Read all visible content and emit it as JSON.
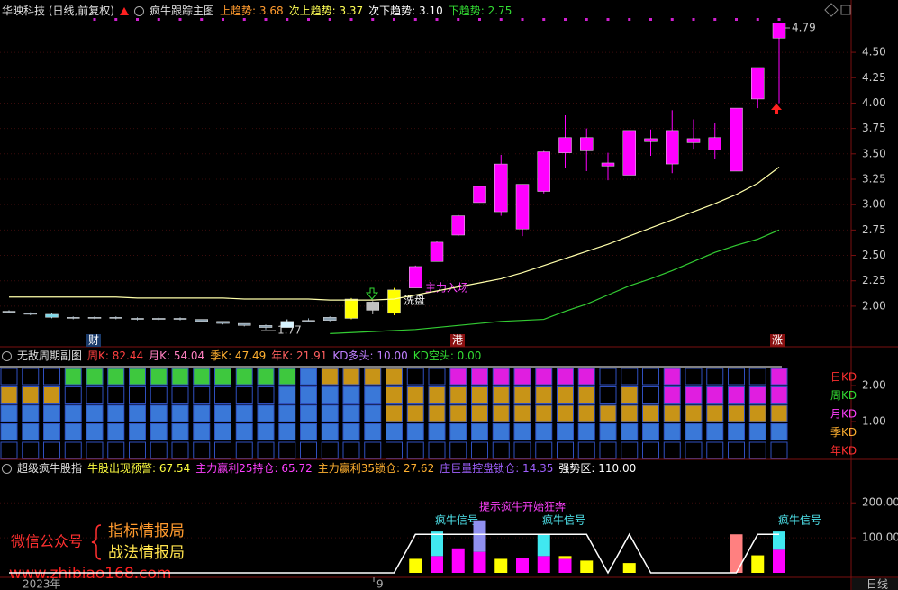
{
  "chart_data": [
    {
      "type": "candlestick",
      "title": "华映科技 (日线,前复权)",
      "subtitle": "疯牛跟踪主图",
      "legend": [
        {
          "text": "上趋势: 3.68",
          "color": "#ff9a2e"
        },
        {
          "text": "次上趋势: 3.37",
          "color": "#ffff55"
        },
        {
          "text": "次下趋势: 3.10",
          "color": "#ffffff"
        },
        {
          "text": "下趋势: 2.75",
          "color": "#33dd33"
        }
      ],
      "open": [
        1.95,
        1.93,
        1.92,
        1.89,
        1.88,
        1.89,
        1.88,
        1.87,
        1.88,
        1.87,
        1.85,
        1.83,
        1.81,
        1.79,
        1.85,
        1.86,
        1.88,
        1.96,
        1.93,
        2.18,
        2.44,
        2.89,
        3.02,
        2.93,
        3.2,
        3.13,
        3.51,
        3.66,
        3.38,
        3.29,
        3.65,
        3.4,
        3.65,
        3.54,
        3.33,
        4.04,
        4.64
      ],
      "high": [
        1.96,
        1.94,
        1.93,
        1.9,
        1.9,
        1.9,
        1.89,
        1.89,
        1.89,
        1.87,
        1.85,
        1.83,
        1.82,
        1.87,
        1.88,
        1.9,
        2.08,
        2.05,
        2.18,
        2.4,
        2.64,
        2.9,
        3.18,
        3.49,
        3.2,
        3.53,
        3.88,
        3.75,
        3.51,
        3.73,
        3.74,
        3.93,
        3.84,
        3.8,
        3.95,
        4.35,
        4.79
      ],
      "low": [
        1.93,
        1.91,
        1.88,
        1.87,
        1.87,
        1.87,
        1.86,
        1.86,
        1.86,
        1.84,
        1.82,
        1.8,
        1.77,
        1.79,
        1.84,
        1.85,
        1.87,
        1.92,
        1.91,
        2.18,
        2.44,
        2.69,
        3.02,
        2.89,
        2.69,
        3.11,
        3.36,
        3.33,
        3.24,
        3.29,
        3.48,
        3.31,
        3.55,
        3.45,
        3.33,
        3.95,
        4.0
      ],
      "close": [
        1.94,
        1.92,
        1.89,
        1.88,
        1.89,
        1.88,
        1.87,
        1.88,
        1.87,
        1.85,
        1.83,
        1.81,
        1.79,
        1.85,
        1.86,
        1.89,
        2.07,
        2.04,
        2.16,
        2.39,
        2.63,
        2.7,
        3.18,
        3.4,
        2.76,
        3.52,
        3.66,
        3.53,
        3.41,
        3.73,
        3.62,
        3.73,
        3.61,
        3.66,
        3.95,
        4.35,
        4.79
      ],
      "colors": [
        "#8aa0b0",
        "#8aa0b0",
        "#7fd8e8",
        "#8aa0b0",
        "#8aa0b0",
        "#8aa0b0",
        "#8aa0b0",
        "#8aa0b0",
        "#8aa0b0",
        "#8aa0b0",
        "#8aa0b0",
        "#8aa0b0",
        "#8aa0b0",
        "#d8f4ff",
        "#8aa0b0",
        "#8aa0b0",
        "#ffff00",
        "#c0c0c0",
        "#ffff00",
        "#ff00ff",
        "#ff00ff",
        "#ff00ff",
        "#ff00ff",
        "#ff00ff",
        "#ff00ff",
        "#ff00ff",
        "#ff00ff",
        "#ff00ff",
        "#ff00ff",
        "#ff00ff",
        "#ff00ff",
        "#ff00ff",
        "#ff00ff",
        "#ff00ff",
        "#ff00ff",
        "#ff00ff",
        "#ff00ff"
      ],
      "lines": [
        {
          "color": "#ffffaa",
          "values": [
            2.09,
            2.09,
            2.09,
            2.09,
            2.09,
            2.09,
            2.08,
            2.08,
            2.08,
            2.08,
            2.08,
            2.07,
            2.07,
            2.07,
            2.07,
            2.06,
            2.06,
            2.06,
            2.07,
            2.11,
            2.15,
            2.19,
            2.23,
            2.27,
            2.33,
            2.4,
            2.47,
            2.54,
            2.61,
            2.69,
            2.77,
            2.85,
            2.93,
            3.01,
            3.1,
            3.21,
            3.37
          ]
        },
        {
          "color": "#33cc33",
          "values": [
            null,
            null,
            null,
            null,
            null,
            null,
            null,
            null,
            null,
            null,
            null,
            null,
            null,
            null,
            null,
            1.73,
            1.74,
            1.75,
            1.76,
            1.77,
            1.79,
            1.81,
            1.83,
            1.85,
            1.86,
            1.87,
            1.95,
            2.02,
            2.11,
            2.2,
            2.27,
            2.35,
            2.44,
            2.53,
            2.6,
            2.66,
            2.75
          ]
        }
      ],
      "ylim": [
        1.6,
        4.82
      ],
      "yticks": [
        {
          "value": 2,
          "label": "2.00"
        },
        {
          "value": 2.25,
          "label": "2.25"
        },
        {
          "value": 2.5,
          "label": "2.50"
        },
        {
          "value": 2.75,
          "label": "2.75"
        },
        {
          "value": 3,
          "label": "3.00"
        },
        {
          "value": 3.25,
          "label": "3.25"
        },
        {
          "value": 3.5,
          "label": "3.50"
        },
        {
          "value": 3.75,
          "label": "3.75"
        },
        {
          "value": 4,
          "label": "4.00"
        },
        {
          "value": 4.25,
          "label": "4.25"
        },
        {
          "value": 4.5,
          "label": "4.50"
        }
      ],
      "grid": true,
      "annotations": [
        "4.79",
        "1.77",
        "主力入场",
        "洗盘"
      ],
      "markers": [
        "财",
        "港",
        "涨"
      ]
    },
    {
      "type": "cell-grid",
      "title": "无敌周期副图",
      "legend": [
        {
          "text": "周K: 82.44",
          "color": "#ff4040"
        },
        {
          "text": "月K: 54.04",
          "color": "#ff80c0"
        },
        {
          "text": "季K: 47.49",
          "color": "#ffb030"
        },
        {
          "text": "年K: 21.91",
          "color": "#ff6060"
        },
        {
          "text": "KD多头: 10.00",
          "color": "#c080ff"
        },
        {
          "text": "KD空头: 0.00",
          "color": "#33dd33"
        }
      ],
      "rows": [
        {
          "label": "日KD",
          "color": "#ff3030",
          "cells": [
            "none",
            "none",
            "none",
            "#3ec83e",
            "#3ec83e",
            "#3ec83e",
            "#3ec83e",
            "#3ec83e",
            "#3ec83e",
            "#3ec83e",
            "#3ec83e",
            "#3ec83e",
            "#3ec83e",
            "#3ec83e",
            "#3a78d8",
            "#c89417",
            "#c89417",
            "#c89417",
            "#c89417",
            "none",
            "none",
            "#e01ee0",
            "#e01ee0",
            "#e01ee0",
            "#e01ee0",
            "#e01ee0",
            "#e01ee0",
            "#e01ee0",
            "none",
            "none",
            "none",
            "#e01ee0",
            "none",
            "none",
            "none",
            "none",
            "#e01ee0"
          ]
        },
        {
          "label": "周KD",
          "color": "#33dd33",
          "cells": [
            "#c89417",
            "#c89417",
            "#c89417",
            "none",
            "none",
            "none",
            "none",
            "none",
            "none",
            "none",
            "none",
            "none",
            "none",
            "#3a78d8",
            "#3a78d8",
            "#3a78d8",
            "#3a78d8",
            "#3a78d8",
            "#c89417",
            "#c89417",
            "#c89417",
            "#c89417",
            "#c89417",
            "#c89417",
            "#c89417",
            "#c89417",
            "#c89417",
            "#c89417",
            "none",
            "#c89417",
            "none",
            "#e01ee0",
            "#e01ee0",
            "#e01ee0",
            "#e01ee0",
            "#e01ee0",
            "#e01ee0"
          ]
        },
        {
          "label": "月KD",
          "color": "#ff40ff",
          "cells": [
            "#3a78d8",
            "#3a78d8",
            "#3a78d8",
            "#3a78d8",
            "#3a78d8",
            "#3a78d8",
            "#3a78d8",
            "#3a78d8",
            "#3a78d8",
            "#3a78d8",
            "#3a78d8",
            "#3a78d8",
            "#3a78d8",
            "#3a78d8",
            "#3a78d8",
            "#3a78d8",
            "#3a78d8",
            "#3a78d8",
            "#c89417",
            "#c89417",
            "#c89417",
            "#c89417",
            "#c89417",
            "#c89417",
            "#c89417",
            "#c89417",
            "#c89417",
            "#c89417",
            "#c89417",
            "#c89417",
            "#c89417",
            "#c89417",
            "#c89417",
            "#c89417",
            "#c89417",
            "#c89417",
            "#c89417"
          ]
        },
        {
          "label": "季KD",
          "color": "#ffb030",
          "cells": [
            "#3a78d8",
            "#3a78d8",
            "#3a78d8",
            "#3a78d8",
            "#3a78d8",
            "#3a78d8",
            "#3a78d8",
            "#3a78d8",
            "#3a78d8",
            "#3a78d8",
            "#3a78d8",
            "#3a78d8",
            "#3a78d8",
            "#3a78d8",
            "#3a78d8",
            "#3a78d8",
            "#3a78d8",
            "#3a78d8",
            "#3a78d8",
            "#3a78d8",
            "#3a78d8",
            "#3a78d8",
            "#3a78d8",
            "#3a78d8",
            "#3a78d8",
            "#3a78d8",
            "#3a78d8",
            "#3a78d8",
            "#3a78d8",
            "#3a78d8",
            "#3a78d8",
            "#3a78d8",
            "#3a78d8",
            "#3a78d8",
            "#3a78d8",
            "#3a78d8",
            "#3a78d8"
          ]
        },
        {
          "label": "年KD",
          "color": "#ff3030",
          "cells": [
            "none",
            "none",
            "none",
            "none",
            "none",
            "none",
            "none",
            "none",
            "none",
            "none",
            "none",
            "none",
            "none",
            "none",
            "none",
            "none",
            "none",
            "none",
            "none",
            "none",
            "none",
            "none",
            "none",
            "none",
            "none",
            "none",
            "none",
            "none",
            "none",
            "none",
            "none",
            "none",
            "none",
            "none",
            "none",
            "none",
            "none"
          ]
        }
      ],
      "ylim": [
        0,
        2.6
      ],
      "yticks": [
        {
          "value": 1,
          "label": "1.00"
        },
        {
          "value": 2,
          "label": "2.00"
        }
      ],
      "grid": false
    },
    {
      "type": "stacked-bar",
      "title": "超级疯牛股指",
      "legend": [
        {
          "text": "牛股出现预警: 67.54",
          "color": "#ffff40"
        },
        {
          "text": "主力赢利25持仓: 65.72",
          "color": "#ff40ff"
        },
        {
          "text": "主力赢利35锁仓: 27.62",
          "color": "#ffb030"
        },
        {
          "text": "庄巨量控盘锁仓: 14.35",
          "color": "#a060ff"
        },
        {
          "text": "强势区: 110.00",
          "color": "#ffffff"
        }
      ],
      "stacks": [
        {
          "values": [
            null,
            null,
            null,
            null,
            null,
            null,
            null,
            null,
            null,
            null,
            null,
            null,
            null,
            null,
            null,
            null,
            null,
            null,
            null,
            40,
            48,
            70,
            60,
            40,
            42,
            48,
            40,
            35,
            null,
            28,
            null,
            null,
            null,
            null,
            110,
            50,
            66
          ],
          "colors": [
            null,
            null,
            null,
            null,
            null,
            null,
            null,
            null,
            null,
            null,
            null,
            null,
            null,
            null,
            null,
            null,
            null,
            null,
            null,
            "#ffff00",
            "#ff00ff",
            "#ff00ff",
            "#ff00ff",
            "#ffff00",
            "#ff00ff",
            "#ff00ff",
            "#ff00ff",
            "#ffff00",
            null,
            "#ffff00",
            null,
            null,
            null,
            null,
            "#ff8080",
            "#ffff00",
            "#ff00ff"
          ]
        },
        {
          "values": [
            null,
            null,
            null,
            null,
            null,
            null,
            null,
            null,
            null,
            null,
            null,
            null,
            null,
            null,
            null,
            null,
            null,
            null,
            null,
            null,
            70,
            null,
            90,
            null,
            null,
            62,
            8,
            null,
            null,
            null,
            null,
            null,
            null,
            null,
            null,
            null,
            52
          ],
          "colors": [
            null,
            null,
            null,
            null,
            null,
            null,
            null,
            null,
            null,
            null,
            null,
            null,
            null,
            null,
            null,
            null,
            null,
            null,
            null,
            null,
            "#40e8f0",
            null,
            "#9090f0",
            null,
            null,
            "#40e8f0",
            "#ffff00",
            null,
            null,
            null,
            null,
            null,
            null,
            null,
            null,
            null,
            "#40e8f0"
          ]
        }
      ],
      "line": {
        "color": "#ffffff",
        "values": [
          0,
          0,
          0,
          0,
          0,
          0,
          0,
          0,
          0,
          0,
          0,
          0,
          0,
          0,
          0,
          0,
          0,
          0,
          0,
          110,
          110,
          110,
          110,
          110,
          110,
          110,
          110,
          110,
          0,
          110,
          0,
          0,
          0,
          0,
          0,
          110,
          110
        ]
      },
      "ylim": [
        0,
        270
      ],
      "yticks": [
        {
          "value": 100,
          "label": "100.00"
        },
        {
          "value": 200,
          "label": "200.00"
        }
      ],
      "grid": true,
      "signals": [
        "疯牛信号",
        "提示疯牛开始狂奔",
        "疯牛信号",
        "疯牛信号"
      ]
    }
  ],
  "watermark": {
    "account": "微信公众号",
    "names": [
      "指标情报局",
      "战法情报局"
    ],
    "url": "www.zhibiao168.com"
  },
  "footer": {
    "x_labels": [
      "2023年",
      "9"
    ],
    "period": "日线"
  }
}
